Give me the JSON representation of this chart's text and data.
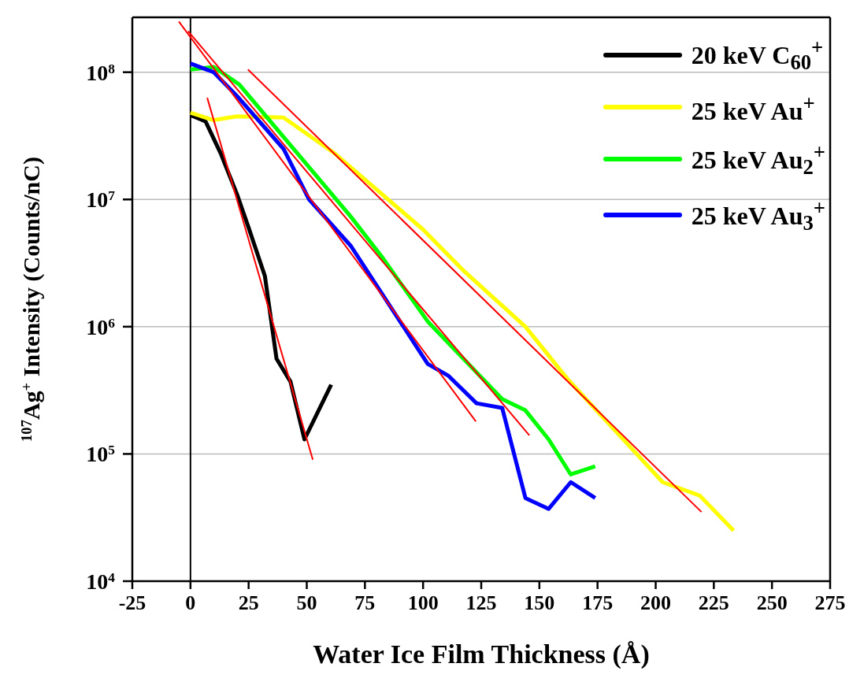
{
  "chart_data": {
    "type": "line",
    "xlabel": "Water Ice Film Thickness (Å)",
    "ylabel": "$^{107}$Ag$^{+}$ Intensity (Counts/nC)",
    "xlim": [
      -25,
      275
    ],
    "xticks": [
      -25,
      0,
      25,
      50,
      75,
      100,
      125,
      150,
      175,
      200,
      225,
      250,
      275
    ],
    "ylim": [
      10000,
      270000000
    ],
    "yticks": [
      {
        "value": 10000,
        "label": "10$^{4}$"
      },
      {
        "value": 100000,
        "label": "10$^{5}$"
      },
      {
        "value": 1000000,
        "label": "10$^{6}$"
      },
      {
        "value": 10000000,
        "label": "10$^{7}$"
      },
      {
        "value": 100000000,
        "label": "10$^{8}$"
      }
    ],
    "log": "y",
    "grid": "y",
    "legend": "top right",
    "marker": "none",
    "line_style": "solid",
    "ref_lines": [
      {
        "axis": "x",
        "value": 0,
        "color": "#000000"
      }
    ],
    "series": [
      {
        "name": "20 keV C$_{60}$$^{+}$",
        "color": "#000000",
        "x": [
          0,
          6.5,
          10,
          13,
          20,
          25,
          32,
          37,
          43,
          49,
          60.5
        ],
        "values": [
          46000000,
          41000000,
          30000000,
          23000000,
          11000000,
          6000000,
          2500000,
          560000,
          370000,
          130000,
          350000
        ]
      },
      {
        "name": "25 keV Au$^{+}$",
        "color": "#ffff00",
        "x": [
          0,
          10,
          20,
          40,
          62,
          100,
          117,
          144,
          162,
          203,
          219,
          233.5
        ],
        "values": [
          48000000,
          42000000,
          45000000,
          44000000,
          23000000,
          5800000,
          2800000,
          1000000,
          390000,
          60000,
          47000,
          25000
        ]
      },
      {
        "name": "25 keV Au$_{2}$$^{+}$",
        "color": "#00ff00",
        "x": [
          0,
          10,
          21,
          40,
          69,
          82,
          102,
          134,
          144,
          154,
          163.5,
          174
        ],
        "values": [
          105000000,
          110000000,
          80000000,
          31000000,
          7300000,
          3600000,
          1100000,
          270000,
          220000,
          130000,
          69000,
          80000
        ]
      },
      {
        "name": "25 keV Au$_{3}$$^{+}$",
        "color": "#0000ff",
        "x": [
          0,
          10,
          20,
          40,
          51,
          69,
          102,
          111,
          123,
          134,
          144,
          154,
          163.5,
          174
        ],
        "values": [
          117000000,
          100000000,
          65000000,
          25000000,
          10000000,
          4300000,
          510000,
          410000,
          250000,
          230000,
          45000,
          37000,
          60000,
          45000
        ]
      },
      {
        "color": "#ff0000",
        "x": [
          7.2,
          52.6
        ],
        "values": [
          63000000,
          90000
        ]
      },
      {
        "color": "#ff0000",
        "x": [
          -5,
          122.7
        ],
        "values": [
          250000000,
          180000
        ]
      },
      {
        "color": "#ff0000",
        "x": [
          -1,
          145.7
        ],
        "values": [
          210000000,
          140000
        ]
      },
      {
        "color": "#ff0000",
        "x": [
          24.7,
          219.7
        ],
        "values": [
          105000000,
          35000
        ]
      }
    ]
  }
}
